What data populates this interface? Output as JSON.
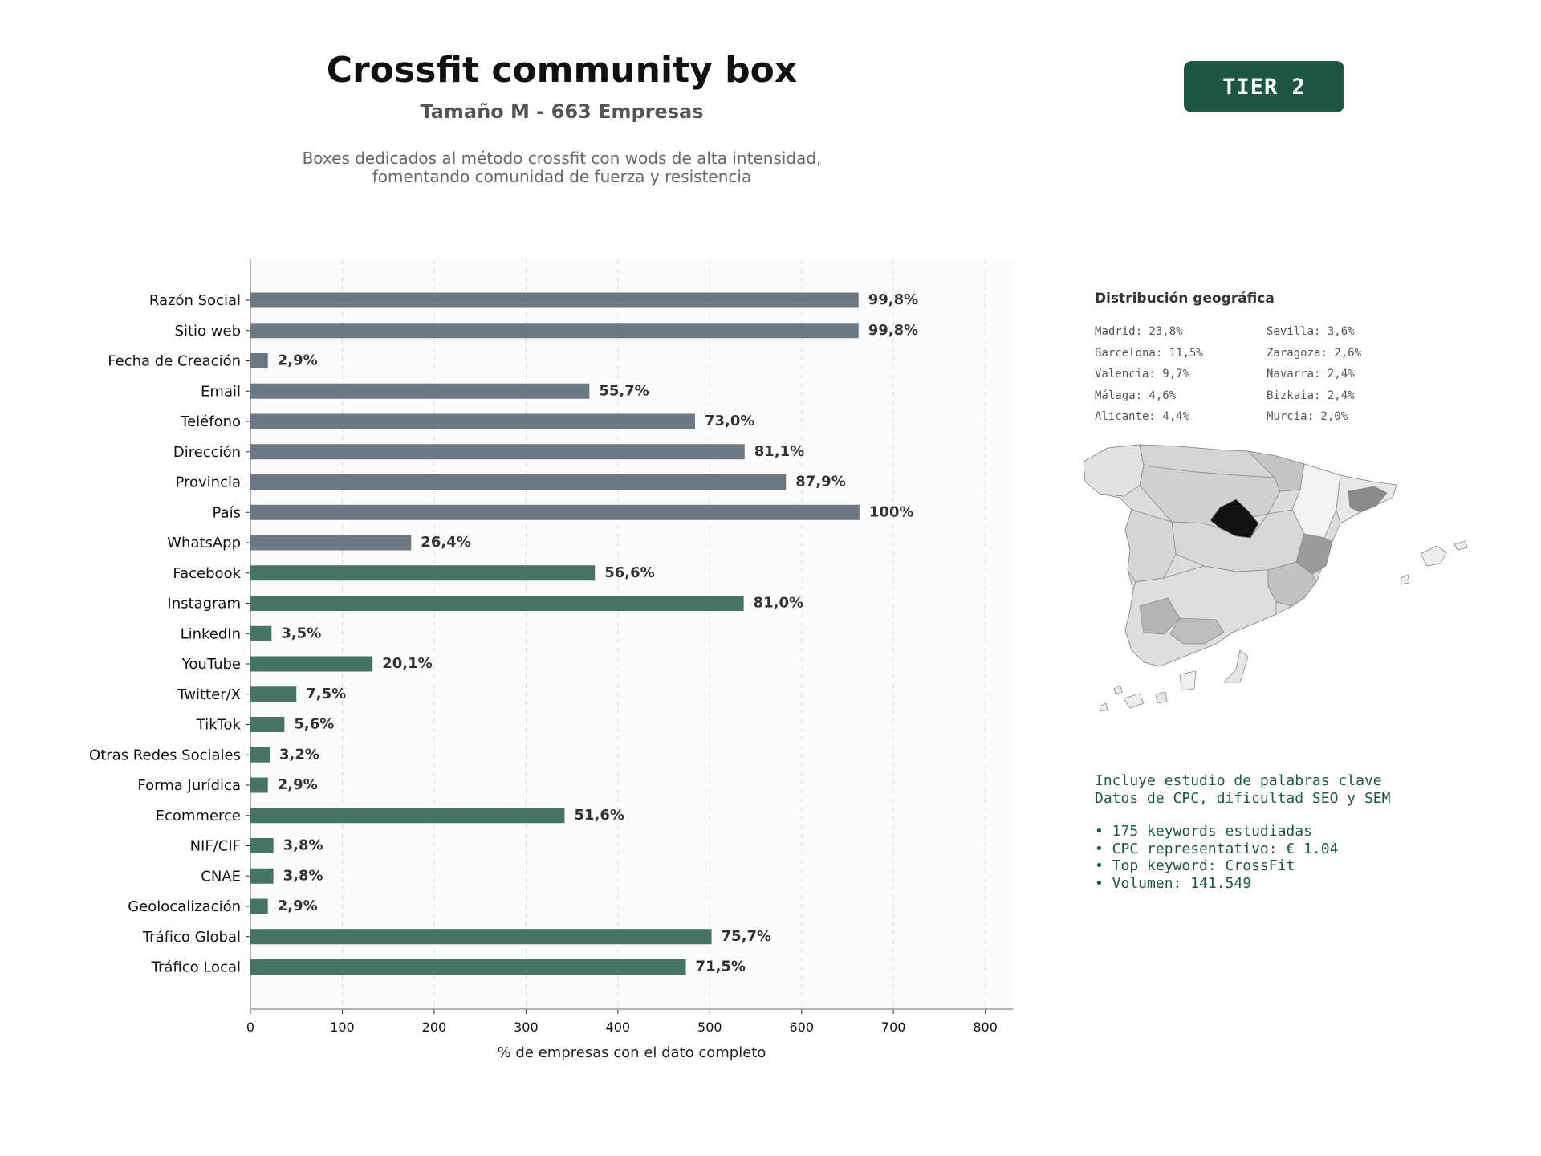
{
  "header": {
    "title": "Crossfit community box",
    "subtitle": "Tamaño M - 663 Empresas",
    "description_line1": "Boxes dedicados al método crossfit con wods de alta intensidad,",
    "description_line2": "fomentando comunidad de fuerza y resistencia",
    "tier_badge": "TIER 2"
  },
  "colors": {
    "gray_bar": "#6c7883",
    "green_bar": "#477563",
    "badge": "#1e5641",
    "keyword_text": "#1e5641"
  },
  "chart_data": {
    "type": "bar",
    "orientation": "horizontal",
    "xlabel": "% de empresas con el dato completo",
    "xlim": [
      0,
      830
    ],
    "xticks": [
      0,
      100,
      200,
      300,
      400,
      500,
      600,
      700,
      800
    ],
    "grid": "vertical dashed",
    "categories": [
      "Razón Social",
      "Sitio web",
      "Fecha de Creación",
      "Email",
      "Teléfono",
      "Dirección",
      "Provincia",
      "País",
      "WhatsApp",
      "Facebook",
      "Instagram",
      "LinkedIn",
      "YouTube",
      "Twitter/X",
      "TikTok",
      "Otras Redes Sociales",
      "Forma Jurídica",
      "Ecommerce",
      "NIF/CIF",
      "CNAE",
      "Geolocalización",
      "Tráfico Global",
      "Tráfico Local"
    ],
    "values": [
      662,
      662,
      19,
      369,
      484,
      538,
      583,
      663,
      175,
      375,
      537,
      23,
      133,
      50,
      37,
      21,
      19,
      342,
      25,
      25,
      19,
      502,
      474
    ],
    "labels": [
      "99,8%",
      "99,8%",
      "2,9%",
      "55,7%",
      "73,0%",
      "81,1%",
      "87,9%",
      "100%",
      "26,4%",
      "56,6%",
      "81,0%",
      "3,5%",
      "20,1%",
      "7,5%",
      "5,6%",
      "3,2%",
      "2,9%",
      "51,6%",
      "3,8%",
      "3,8%",
      "2,9%",
      "75,7%",
      "71,5%"
    ],
    "bar_group": [
      "gray",
      "gray",
      "gray",
      "gray",
      "gray",
      "gray",
      "gray",
      "gray",
      "gray",
      "green",
      "green",
      "green",
      "green",
      "green",
      "green",
      "green",
      "green",
      "green",
      "green",
      "green",
      "green",
      "green",
      "green"
    ]
  },
  "geo": {
    "title": "Distribución geográfica",
    "left": [
      "Madrid: 23,8%",
      "Barcelona: 11,5%",
      "Valencia: 9,7%",
      "Málaga: 4,6%",
      "Alicante: 4,4%"
    ],
    "right": [
      "Sevilla: 3,6%",
      "Zaragoza: 2,6%",
      "Navarra: 2,4%",
      "Bizkaia: 2,4%",
      "Murcia: 2,0%"
    ]
  },
  "keywords": {
    "line1": "Incluye estudio de palabras clave",
    "line2": "Datos de CPC, dificultad SEO y SEM",
    "bullet1": "• 175 keywords estudiadas",
    "bullet2": "• CPC representativo: € 1.04",
    "bullet3": "• Top keyword: CrossFit",
    "bullet4": "• Volumen: 141.549"
  }
}
